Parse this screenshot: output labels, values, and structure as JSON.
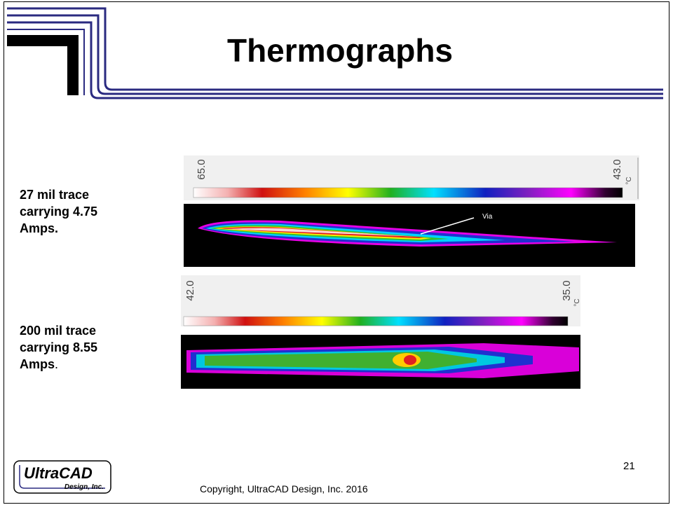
{
  "header": {
    "title": "Thermographs"
  },
  "panels": [
    {
      "caption": "27 mil trace carrying 4.75 Amps.",
      "scale_max": "65.0",
      "scale_min": "43.0",
      "unit": "°C",
      "annotation": "Via"
    },
    {
      "caption": "200 mil trace carrying 8.55 Amps",
      "caption_tail": ".",
      "scale_max": "42.0",
      "scale_min": "35.0",
      "unit": "°C"
    }
  ],
  "footer": {
    "copyright": "Copyright, UltraCAD Design, Inc.  2016",
    "page_number": "21",
    "logo": {
      "name": "UltraCAD",
      "tagline": "Design, Inc."
    }
  }
}
